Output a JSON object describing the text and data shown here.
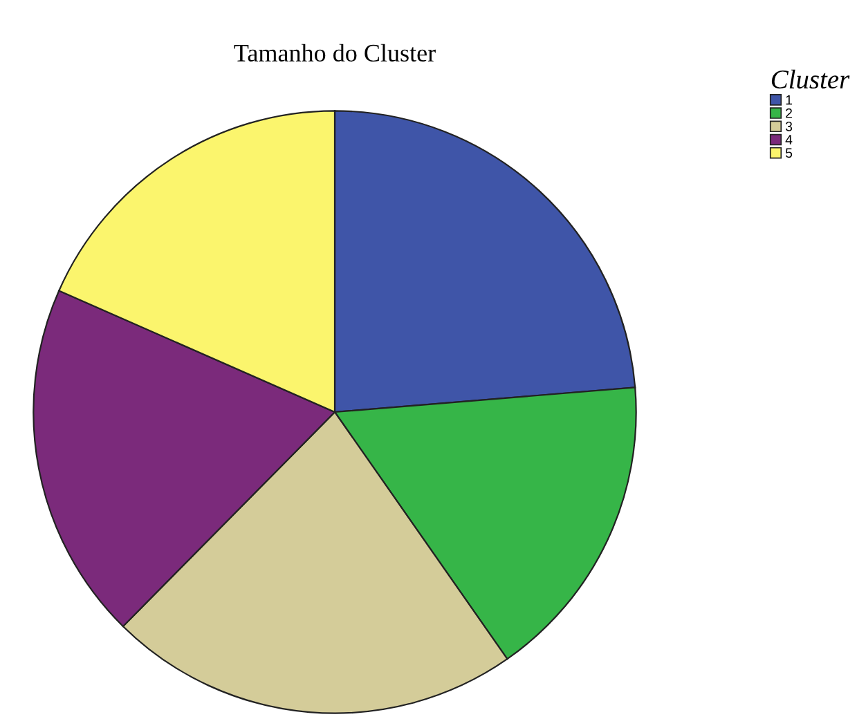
{
  "chart_data": {
    "type": "pie",
    "title": "Tamanho do Cluster",
    "legend_title": "Cluster",
    "legend": "top right",
    "categories": [
      "1",
      "2",
      "3",
      "4",
      "5"
    ],
    "values": [
      23.7,
      16.6,
      22.1,
      19.2,
      18.4
    ],
    "colors": [
      "#3f55a8",
      "#36b548",
      "#d4cc99",
      "#7b2a7b",
      "#fbf56d"
    ]
  }
}
